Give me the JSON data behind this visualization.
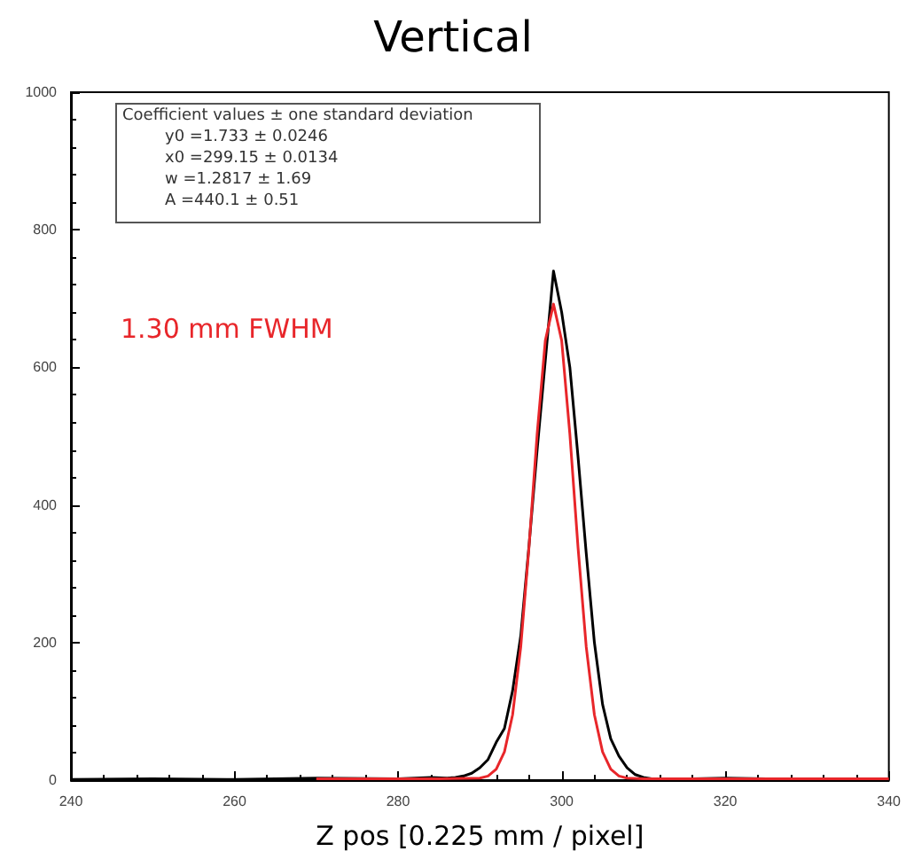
{
  "chart_data": {
    "type": "line",
    "title": "Vertical",
    "xlabel": "Z pos [0.225 mm / pixel]",
    "annotations": [
      "Coefficient values ± one standard deviation",
      "y0 =1.733 ± 0.0246",
      "x0 =299.15 ± 0.0134",
      "w =1.2817 ± 1.69",
      "A =440.1 ± 0.51",
      "1.30 mm FWHM"
    ],
    "xlim": [
      240,
      340
    ],
    "xticks": [
      240,
      260,
      280,
      300,
      320,
      340
    ],
    "ylim": [
      0,
      1000
    ],
    "yticks": [
      0,
      200,
      400,
      600,
      800,
      1000
    ],
    "grid": false,
    "series": [
      {
        "color": "#000000",
        "x": [
          240,
          250,
          260,
          270,
          280,
          284,
          286,
          287,
          288,
          289,
          290,
          291,
          292,
          293,
          294,
          295,
          296,
          297,
          298,
          299,
          300,
          301,
          302,
          303,
          304,
          305,
          306,
          307,
          308,
          309,
          310,
          311,
          312,
          316,
          320,
          330,
          340
        ],
        "values": [
          1,
          2,
          1,
          3,
          2,
          4,
          3,
          4,
          6,
          10,
          18,
          30,
          55,
          75,
          130,
          210,
          340,
          480,
          610,
          740,
          680,
          600,
          470,
          330,
          200,
          110,
          60,
          35,
          18,
          8,
          4,
          2,
          1,
          2,
          3,
          1,
          2
        ]
      },
      {
        "color": "#e8262a",
        "x": [
          270,
          285,
          290,
          291,
          292,
          293,
          294,
          295,
          296,
          297,
          298,
          299,
          300,
          301,
          302,
          303,
          304,
          305,
          306,
          307,
          308,
          310,
          320,
          340
        ],
        "values": [
          2,
          2,
          3,
          6,
          16,
          41,
          95,
          194,
          338,
          503,
          639,
          692,
          639,
          503,
          338,
          194,
          95,
          41,
          16,
          6,
          3,
          2,
          2,
          2
        ]
      }
    ]
  }
}
